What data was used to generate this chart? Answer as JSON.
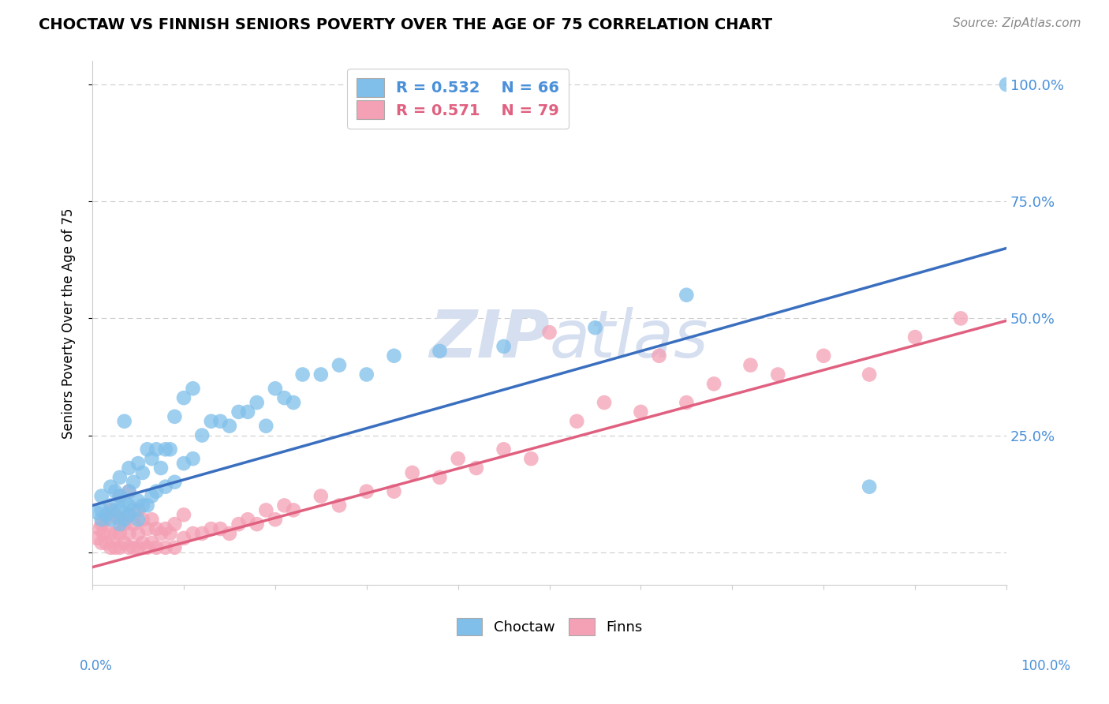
{
  "title": "CHOCTAW VS FINNISH SENIORS POVERTY OVER THE AGE OF 75 CORRELATION CHART",
  "source": "Source: ZipAtlas.com",
  "ylabel": "Seniors Poverty Over the Age of 75",
  "choctaw_R": "0.532",
  "choctaw_N": "66",
  "finns_R": "0.571",
  "finns_N": "79",
  "blue_color": "#7fbfea",
  "pink_color": "#f4a0b5",
  "blue_line_color": "#3a6fbf",
  "pink_line_color": "#e06080",
  "blue_text_color": "#4a90d9",
  "pink_text_color": "#e06080",
  "blue_line_y0": 0.1,
  "blue_line_y1": 0.65,
  "pink_line_y0": -0.032,
  "pink_line_y1": 0.495,
  "ylim": [
    -0.07,
    1.05
  ],
  "xlim": [
    0.0,
    1.0
  ],
  "ytick_positions": [
    0.0,
    0.25,
    0.5,
    0.75,
    1.0
  ],
  "ytick_labels": [
    "",
    "25.0%",
    "50.0%",
    "75.0%",
    "100.0%"
  ],
  "xtick_labels": [
    "0.0%",
    "100.0%"
  ],
  "grid_color": "#cccccc",
  "watermark_zip": "ZIP",
  "watermark_atlas": "atlas",
  "watermark_color": "#d5dff0",
  "choctaw_x": [
    0.005,
    0.01,
    0.01,
    0.01,
    0.015,
    0.02,
    0.02,
    0.02,
    0.025,
    0.025,
    0.03,
    0.03,
    0.03,
    0.03,
    0.035,
    0.035,
    0.035,
    0.04,
    0.04,
    0.04,
    0.04,
    0.045,
    0.045,
    0.05,
    0.05,
    0.05,
    0.055,
    0.055,
    0.06,
    0.06,
    0.065,
    0.065,
    0.07,
    0.07,
    0.075,
    0.08,
    0.08,
    0.085,
    0.09,
    0.09,
    0.1,
    0.1,
    0.11,
    0.11,
    0.12,
    0.13,
    0.14,
    0.15,
    0.16,
    0.17,
    0.18,
    0.19,
    0.2,
    0.21,
    0.22,
    0.23,
    0.25,
    0.27,
    0.3,
    0.33,
    0.38,
    0.45,
    0.55,
    0.65,
    0.85,
    1.0
  ],
  "choctaw_y": [
    0.085,
    0.07,
    0.09,
    0.12,
    0.08,
    0.07,
    0.1,
    0.14,
    0.09,
    0.13,
    0.06,
    0.09,
    0.12,
    0.16,
    0.07,
    0.11,
    0.28,
    0.08,
    0.1,
    0.13,
    0.18,
    0.09,
    0.15,
    0.07,
    0.11,
    0.19,
    0.1,
    0.17,
    0.1,
    0.22,
    0.12,
    0.2,
    0.13,
    0.22,
    0.18,
    0.14,
    0.22,
    0.22,
    0.15,
    0.29,
    0.19,
    0.33,
    0.2,
    0.35,
    0.25,
    0.28,
    0.28,
    0.27,
    0.3,
    0.3,
    0.32,
    0.27,
    0.35,
    0.33,
    0.32,
    0.38,
    0.38,
    0.4,
    0.38,
    0.42,
    0.43,
    0.44,
    0.48,
    0.55,
    0.14,
    1.0
  ],
  "finns_x": [
    0.005,
    0.008,
    0.01,
    0.01,
    0.012,
    0.015,
    0.015,
    0.02,
    0.02,
    0.02,
    0.025,
    0.025,
    0.025,
    0.03,
    0.03,
    0.03,
    0.03,
    0.035,
    0.035,
    0.04,
    0.04,
    0.04,
    0.04,
    0.045,
    0.045,
    0.05,
    0.05,
    0.05,
    0.055,
    0.055,
    0.06,
    0.06,
    0.065,
    0.065,
    0.07,
    0.07,
    0.075,
    0.08,
    0.08,
    0.085,
    0.09,
    0.09,
    0.1,
    0.1,
    0.11,
    0.12,
    0.13,
    0.14,
    0.15,
    0.16,
    0.17,
    0.18,
    0.19,
    0.2,
    0.21,
    0.22,
    0.25,
    0.27,
    0.3,
    0.33,
    0.35,
    0.38,
    0.4,
    0.42,
    0.45,
    0.48,
    0.5,
    0.53,
    0.56,
    0.6,
    0.62,
    0.65,
    0.68,
    0.72,
    0.75,
    0.8,
    0.85,
    0.9,
    0.95
  ],
  "finns_y": [
    0.03,
    0.05,
    0.02,
    0.06,
    0.04,
    0.02,
    0.07,
    0.01,
    0.04,
    0.09,
    0.01,
    0.04,
    0.08,
    0.01,
    0.04,
    0.07,
    0.12,
    0.02,
    0.06,
    0.01,
    0.04,
    0.08,
    0.13,
    0.01,
    0.06,
    0.01,
    0.04,
    0.09,
    0.02,
    0.07,
    0.01,
    0.05,
    0.02,
    0.07,
    0.01,
    0.05,
    0.04,
    0.01,
    0.05,
    0.04,
    0.01,
    0.06,
    0.03,
    0.08,
    0.04,
    0.04,
    0.05,
    0.05,
    0.04,
    0.06,
    0.07,
    0.06,
    0.09,
    0.07,
    0.1,
    0.09,
    0.12,
    0.1,
    0.13,
    0.13,
    0.17,
    0.16,
    0.2,
    0.18,
    0.22,
    0.2,
    0.47,
    0.28,
    0.32,
    0.3,
    0.42,
    0.32,
    0.36,
    0.4,
    0.38,
    0.42,
    0.38,
    0.46,
    0.5
  ]
}
